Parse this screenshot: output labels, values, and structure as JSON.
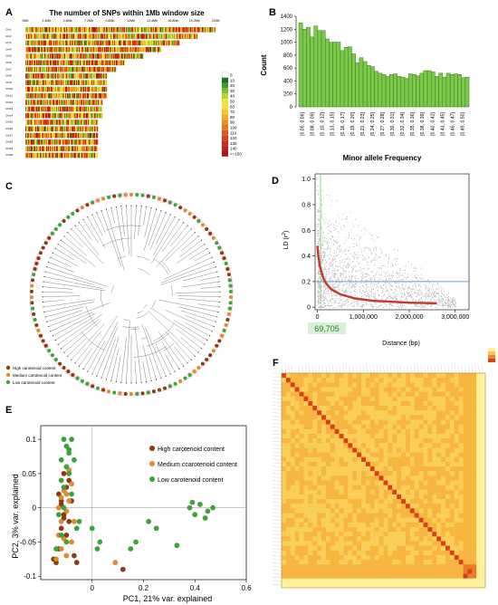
{
  "panel_labels": [
    "A",
    "B",
    "C",
    "D",
    "E",
    "F"
  ],
  "colors": {
    "bar_fill": "#7cc84a",
    "bar_stroke": "#3d7a21",
    "ld_points": "#b9b9b9",
    "ld_curve": "#c0392b",
    "ld_line": "#5aa0e0",
    "high": "#8b3a12",
    "medium": "#e08c2a",
    "low": "#3aa63a",
    "heat_low": "#fff3a0",
    "heat_high": "#d8401c"
  },
  "chart_data": [
    {
      "panel": "A",
      "type": "heatmap",
      "title": "The number of SNPs within 1Mb window size",
      "x_ticks": [
        "0Mb",
        "2.4Mb",
        "4.8Mb",
        "7.2Mb",
        "9.6Mb",
        "12Mb",
        "14.4Mb",
        "16.8Mb",
        "19.2Mb",
        "21Mb"
      ],
      "rows": [
        "Chr1",
        "Chr2",
        "Chr3",
        "Chr4",
        "Chr5",
        "Chr6",
        "Chr7",
        "Chr8",
        "Chr9",
        "Chr10",
        "Chr11",
        "Chr12",
        "Chr13",
        "Chr14",
        "Chr15",
        "Chr16",
        "Chr17",
        "Chr18",
        "Chr19",
        "Chr20"
      ],
      "row_length_mb": [
        21,
        19,
        17,
        15,
        13,
        11,
        10,
        9,
        9,
        9,
        9,
        8.5,
        8.5,
        8.5,
        8,
        8,
        8,
        8,
        8,
        8
      ],
      "legend_levels": [
        "0",
        "10",
        "20",
        "30",
        "40",
        "50",
        "60",
        "70",
        "80",
        "90",
        "100",
        "110",
        "120",
        "130",
        "140",
        ">=150"
      ],
      "legend_colors": [
        "#ffffff",
        "#1f6e1f",
        "#3e9a2a",
        "#7dbd2e",
        "#b8d432",
        "#e8e83a",
        "#f6de36",
        "#f7c52e",
        "#f5ab26",
        "#f08e20",
        "#ea731e",
        "#e2581c",
        "#d8401c",
        "#cc2e1a",
        "#bf2018",
        "#ad1616"
      ]
    },
    {
      "panel": "B",
      "type": "bar",
      "categories": [
        "[0.05, 0.06]",
        "[0.06, 0.07]",
        "[0.07, 0.08]",
        "[0.08, 0.09]",
        "[0.09, 0.10]",
        "[0.10, 0.11]",
        "[0.11, 0.12]",
        "[0.12, 0.13]",
        "[0.13, 0.14]",
        "[0.14, 0.15]",
        "[0.15, 0.16]",
        "[0.16, 0.17]",
        "[0.17, 0.18]",
        "[0.18, 0.19]",
        "[0.19, 0.20]",
        "[0.20, 0.21]",
        "[0.21, 0.22]",
        "[0.22, 0.23]",
        "[0.23, 0.24]",
        "[0.24, 0.25]",
        "[0.25, 0.26]",
        "[0.26, 0.27]",
        "[0.27, 0.28]",
        "[0.28, 0.29]",
        "[0.29, 0.30]",
        "[0.30, 0.31]",
        "[0.31, 0.32]",
        "[0.32, 0.33]",
        "[0.33, 0.34]",
        "[0.34, 0.35]",
        "[0.35, 0.36]",
        "[0.36, 0.37]",
        "[0.37, 0.38]",
        "[0.38, 0.39]",
        "[0.39, 0.40]",
        "[0.40, 0.41]",
        "[0.41, 0.42]",
        "[0.42, 0.43]",
        "[0.43, 0.44]",
        "[0.44, 0.45]",
        "[0.45, 0.46]",
        "[0.46, 0.47]",
        "[0.47, 0.48]",
        "[0.48, 0.49]",
        "[0.49, 0.50]"
      ],
      "tick_labels": [
        "[0.05, 0.06]",
        "[0.08, 0.09]",
        "[0.10, 0.12]",
        "[0.13, 0.15]",
        "[0.16, 0.17]",
        "[0.19, 0.20]",
        "[0.21, 0.23]",
        "[0.24, 0.25]",
        "[0.27, 0.28]",
        "[0.30, 0.31]",
        "[0.32, 0.34]",
        "[0.35, 0.36]",
        "[0.38, 0.39]",
        "[0.40, 0.42]",
        "[0.43, 0.45]",
        "[0.46, 0.47]",
        "[0.49, 0.50]"
      ],
      "values": [
        1300,
        1200,
        1230,
        1080,
        1250,
        1180,
        1180,
        1050,
        1000,
        1000,
        1000,
        870,
        920,
        930,
        820,
        680,
        760,
        700,
        640,
        620,
        550,
        520,
        500,
        470,
        500,
        510,
        470,
        460,
        440,
        510,
        500,
        480,
        520,
        560,
        560,
        540,
        470,
        520,
        460,
        520,
        500,
        510,
        500,
        450,
        460
      ],
      "xlabel": "Minor allele Frequency",
      "ylabel": "Count",
      "ylim": [
        0,
        1400
      ],
      "y_ticks": [
        0,
        200,
        400,
        600,
        800,
        1000,
        1200,
        1400
      ]
    },
    {
      "panel": "C",
      "type": "tree",
      "legend": [
        "High carotenoid content",
        "Medium carotenoid content",
        "Low carotenoid content"
      ]
    },
    {
      "panel": "D",
      "type": "scatter",
      "xlabel": "Distance (bp)",
      "ylabel": "LD (r²)",
      "ylabel_main": "LD (r",
      "ylabel_sup": "2",
      "ylabel_end": ")",
      "x_ticks": [
        "0",
        "1,000,000",
        "2,000,000",
        "3,000,000"
      ],
      "x_tick_values": [
        0,
        1000000,
        2000000,
        3000000
      ],
      "y_ticks": [
        "0",
        "0.2",
        "0.4",
        "0.6",
        "0.8",
        "1.0"
      ],
      "y_tick_values": [
        0,
        0.2,
        0.4,
        0.6,
        0.8,
        1.0
      ],
      "xlim": [
        -50000,
        3300000
      ],
      "ylim": [
        -0.02,
        1.04
      ],
      "decay_curve": [
        [
          0,
          0.48
        ],
        [
          20000,
          0.4
        ],
        [
          50000,
          0.33
        ],
        [
          69705,
          0.3
        ],
        [
          100000,
          0.26
        ],
        [
          150000,
          0.21
        ],
        [
          200000,
          0.18
        ],
        [
          300000,
          0.14
        ],
        [
          500000,
          0.1
        ],
        [
          800000,
          0.07
        ],
        [
          1200000,
          0.05
        ],
        [
          2000000,
          0.035
        ],
        [
          2600000,
          0.03
        ]
      ],
      "threshold_r2": 0.2,
      "decay_distance": 69705,
      "decay_label": "69,705"
    },
    {
      "panel": "E",
      "type": "scatter",
      "xlabel": "PC1, 21% var. explained",
      "ylabel": "PC2, 3% var. explained",
      "x_ticks": [
        0,
        0.2,
        0.4,
        0.6
      ],
      "x_tick_labels": [
        "0",
        "0.2",
        "0.4",
        "0.6"
      ],
      "y_ticks": [
        -0.1,
        -0.05,
        0,
        0.05,
        0.1
      ],
      "y_tick_labels": [
        "-0.1",
        "-0.05",
        "0",
        "0.05",
        "0.1"
      ],
      "xlim": [
        -0.2,
        0.6
      ],
      "ylim": [
        -0.105,
        0.12
      ],
      "legend": [
        "High carotenoid content",
        "Medium ccarotenoid content",
        "Low carotenoid content"
      ],
      "series": [
        {
          "name": "High carotenoid content",
          "color": "#8b3a12",
          "points": [
            [
              -0.13,
              0.02
            ],
            [
              -0.12,
              0.005
            ],
            [
              -0.11,
              -0.01
            ],
            [
              -0.1,
              0.03
            ],
            [
              -0.12,
              -0.03
            ],
            [
              -0.14,
              -0.08
            ],
            [
              -0.13,
              -0.06
            ],
            [
              -0.09,
              -0.02
            ],
            [
              -0.08,
              0.01
            ],
            [
              -0.11,
              0.05
            ],
            [
              -0.07,
              -0.07
            ],
            [
              -0.1,
              -0.04
            ],
            [
              -0.12,
              0.01
            ],
            [
              -0.09,
              0.04
            ],
            [
              -0.06,
              -0.08
            ],
            [
              0.12,
              -0.09
            ],
            [
              -0.15,
              -0.075
            ],
            [
              -0.11,
              -0.015
            ]
          ]
        },
        {
          "name": "Medium ccarotenoid content",
          "color": "#e08c2a",
          "points": [
            [
              -0.13,
              0.0
            ],
            [
              -0.12,
              0.015
            ],
            [
              -0.11,
              0.025
            ],
            [
              -0.1,
              -0.005
            ],
            [
              -0.13,
              -0.04
            ],
            [
              -0.12,
              -0.06
            ],
            [
              -0.1,
              -0.07
            ],
            [
              -0.09,
              0.01
            ],
            [
              -0.08,
              0.035
            ],
            [
              -0.1,
              0.02
            ],
            [
              -0.14,
              -0.075
            ],
            [
              -0.11,
              -0.045
            ],
            [
              -0.07,
              -0.02
            ],
            [
              -0.09,
              0.055
            ],
            [
              0.09,
              -0.08
            ],
            [
              -0.12,
              -0.02
            ],
            [
              -0.08,
              -0.05
            ]
          ]
        },
        {
          "name": "Low carotenoid content",
          "color": "#3aa63a",
          "points": [
            [
              -0.11,
              0.1
            ],
            [
              -0.1,
              0.09
            ],
            [
              -0.09,
              0.08
            ],
            [
              -0.1,
              0.06
            ],
            [
              -0.12,
              0.04
            ],
            [
              -0.11,
              0.03
            ],
            [
              -0.08,
              0.1
            ],
            [
              -0.09,
              0.05
            ],
            [
              -0.13,
              -0.01
            ],
            [
              -0.12,
              -0.04
            ],
            [
              -0.1,
              -0.05
            ],
            [
              -0.07,
              0.07
            ],
            [
              -0.08,
              0.02
            ],
            [
              -0.11,
              0.0
            ],
            [
              0.22,
              -0.02
            ],
            [
              0.25,
              -0.03
            ],
            [
              0.38,
              0.0
            ],
            [
              0.4,
              -0.01
            ],
            [
              0.42,
              0.005
            ],
            [
              0.45,
              -0.005
            ],
            [
              0.47,
              0.0
            ],
            [
              0.44,
              -0.015
            ],
            [
              0.39,
              0.008
            ],
            [
              0.17,
              -0.05
            ],
            [
              0.15,
              -0.06
            ],
            [
              0.33,
              -0.055
            ],
            [
              -0.14,
              -0.06
            ],
            [
              -0.06,
              -0.03
            ],
            [
              0.03,
              -0.05
            ],
            [
              0.0,
              -0.03
            ],
            [
              0.02,
              -0.06
            ],
            [
              -0.05,
              -0.02
            ],
            [
              -0.12,
              0.07
            ],
            [
              -0.09,
              0.085
            ]
          ]
        }
      ]
    },
    {
      "panel": "F",
      "type": "heatmap",
      "description_colors": [
        "#fff3a0",
        "#f6c64a",
        "#ec8a2a",
        "#d8401c"
      ]
    }
  ]
}
